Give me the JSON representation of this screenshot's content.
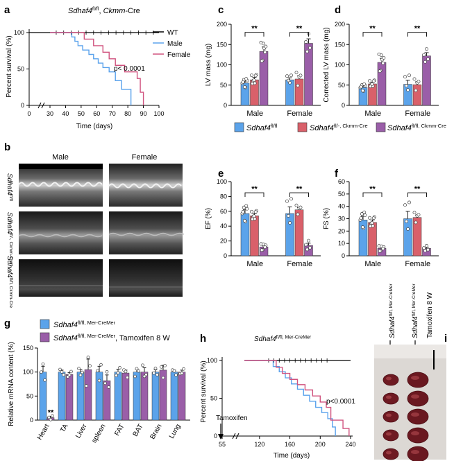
{
  "colors": {
    "wt": "#000000",
    "male_line": "#5aa2ec",
    "female_line": "#d0527e",
    "blue": "#5ba3ea",
    "red": "#d9606a",
    "purple": "#9a5ea8"
  },
  "panel_labels": {
    "a": "a",
    "b": "b",
    "c": "c",
    "d": "d",
    "e": "e",
    "f": "f",
    "g": "g",
    "h": "h",
    "i": "i"
  },
  "a": {
    "title_gene": "Sdhaf4",
    "title_sup": "fl/fl",
    "title_rest": ", ",
    "title_cre": "Ckmm",
    "title_end": "-Cre",
    "ylabel": "Percent survival (%)",
    "xlabel": "Time (days)",
    "yticks": [
      "0",
      "50",
      "100"
    ],
    "xticks": [
      "0",
      "30",
      "40",
      "50",
      "60",
      "70",
      "80",
      "90",
      "100"
    ],
    "legend": [
      "WT",
      "Male",
      "Female"
    ],
    "pvalue": "p< 0.0001"
  },
  "b": {
    "cols": [
      "Male",
      "Female"
    ],
    "rows": [
      {
        "gene": "Sdhaf4",
        "sup": "fl/fl"
      },
      {
        "gene": "Sdhaf4",
        "sup": "fl/-, Ckmm-Cre"
      },
      {
        "gene": "Sdhaf4",
        "sup": "fl/fl, Ckmm-Cre"
      }
    ]
  },
  "legend_cdef": [
    {
      "gene": "Sdhaf4",
      "sup": "fl/fl"
    },
    {
      "gene": "Sdhaf4",
      "sup": "fl/-, Ckmm-Cre"
    },
    {
      "gene": "Sdhaf4",
      "sup": "fl/fl, Ckmm-Cre"
    }
  ],
  "legend_g": [
    {
      "gene": "Sdhaf4",
      "sup": "fl/fl, Mer-CreMer",
      "extra": ""
    },
    {
      "gene": "Sdhaf4",
      "sup": "fl/fl, Mer-CreMer",
      "extra": ", Tamoxifen 8 W"
    }
  ],
  "sig": "**",
  "h": {
    "title_gene": "Sdhaf4",
    "title_sup": "fl/fl, Mer-CreMer",
    "ylabel": "Percent survival (%)",
    "xlabel": "Time (days)",
    "yticks": [
      "0",
      "50",
      "100"
    ],
    "xticks": [
      "55",
      "120",
      "160",
      "200",
      "240"
    ],
    "pvalue": "p<0.0001",
    "arrow_label": "Tamoxifen"
  },
  "i": {
    "labels": [
      {
        "gene": "Sdhaf4",
        "sup": "fl/fl, Mer-CreMer"
      },
      {
        "gene": "Sdhaf4",
        "sup": "fl/fl, Mer-CreMer"
      }
    ],
    "extra": "Tamoxifen 8 W"
  },
  "chart_data": [
    {
      "type": "line",
      "panel": "a",
      "xlabel": "Time (days)",
      "ylabel": "Percent survival (%)",
      "ylim": [
        0,
        100
      ],
      "xlim": [
        30,
        100
      ],
      "series": [
        {
          "name": "WT",
          "x": [
            30,
            100
          ],
          "y": [
            100,
            100
          ]
        },
        {
          "name": "Male",
          "x": [
            30,
            42,
            44,
            46,
            48,
            51,
            55,
            58,
            61,
            64,
            68,
            72,
            76,
            82
          ],
          "y": [
            100,
            100,
            94,
            88,
            82,
            76,
            70,
            64,
            58,
            52,
            46,
            34,
            22,
            0
          ]
        },
        {
          "name": "Female",
          "x": [
            30,
            46,
            52,
            58,
            64,
            68,
            72,
            78,
            86,
            88,
            90
          ],
          "y": [
            100,
            100,
            91,
            82,
            73,
            64,
            55,
            46,
            37,
            18,
            0
          ]
        }
      ]
    },
    {
      "type": "bar",
      "panel": "c",
      "ylabel": "LV mass (mg)",
      "ylim": [
        0,
        200
      ],
      "categories": [
        "Male",
        "Female"
      ],
      "series": [
        {
          "name": "Sdhaf4 fl/fl",
          "values": [
            55,
            63
          ]
        },
        {
          "name": "Sdhaf4 fl/-, Ckmm-Cre",
          "values": [
            63,
            65
          ]
        },
        {
          "name": "Sdhaf4 fl/fl, Ckmm-Cre",
          "values": [
            133,
            153
          ]
        }
      ]
    },
    {
      "type": "bar",
      "panel": "d",
      "ylabel": "Corrected LV mass (mg)",
      "ylim": [
        0,
        200
      ],
      "categories": [
        "Male",
        "Female"
      ],
      "series": [
        {
          "name": "Sdhaf4 fl/fl",
          "values": [
            44,
            52
          ]
        },
        {
          "name": "Sdhaf4 fl/-, Ckmm-Cre",
          "values": [
            53,
            51
          ]
        },
        {
          "name": "Sdhaf4 fl/fl, Ckmm-Cre",
          "values": [
            106,
            122
          ]
        }
      ]
    },
    {
      "type": "bar",
      "panel": "e",
      "ylabel": "EF (%)",
      "ylim": [
        0,
        100
      ],
      "categories": [
        "Male",
        "Female"
      ],
      "series": [
        {
          "name": "Sdhaf4 fl/fl",
          "values": [
            57,
            57
          ]
        },
        {
          "name": "Sdhaf4 fl/-, Ckmm-Cre",
          "values": [
            54,
            62
          ]
        },
        {
          "name": "Sdhaf4 fl/fl, Ckmm-Cre",
          "values": [
            12,
            14
          ]
        }
      ]
    },
    {
      "type": "bar",
      "panel": "f",
      "ylabel": "FS (%)",
      "ylim": [
        0,
        60
      ],
      "categories": [
        "Male",
        "Female"
      ],
      "series": [
        {
          "name": "Sdhaf4 fl/fl",
          "values": [
            29,
            30
          ]
        },
        {
          "name": "Sdhaf4 fl/-, Ckmm-Cre",
          "values": [
            27,
            31
          ]
        },
        {
          "name": "Sdhaf4 fl/fl, Ckmm-Cre",
          "values": [
            6,
            6
          ]
        }
      ]
    },
    {
      "type": "bar",
      "panel": "g",
      "ylabel": "Relative mRNA content (%)",
      "ylim": [
        0,
        150
      ],
      "categories": [
        "Heart",
        "TA",
        "Liver",
        "spleen",
        "FAT",
        "BAT",
        "Brain",
        "Lung"
      ],
      "series": [
        {
          "name": "Sdhaf4 fl/fl, Mer-CreMer",
          "values": [
            100,
            100,
            100,
            100,
            100,
            100,
            100,
            100
          ]
        },
        {
          "name": "Sdhaf4 fl/fl, Mer-CreMer, Tamoxifen 8 W",
          "values": [
            5,
            95,
            105,
            82,
            98,
            100,
            104,
            100
          ]
        }
      ]
    },
    {
      "type": "line",
      "panel": "h",
      "xlabel": "Time (days)",
      "ylabel": "Percent survival (%)",
      "ylim": [
        0,
        100
      ],
      "xlim": [
        55,
        240
      ],
      "series": [
        {
          "x": [
            100,
            240
          ],
          "y": [
            100,
            100
          ]
        },
        {
          "x": [
            100,
            130,
            138,
            146,
            154,
            162,
            170,
            178,
            186,
            194,
            202,
            210,
            216,
            220
          ],
          "y": [
            100,
            100,
            92,
            85,
            77,
            69,
            62,
            54,
            46,
            38,
            31,
            23,
            12,
            0
          ]
        },
        {
          "x": [
            100,
            134,
            142,
            150,
            160,
            170,
            180,
            190,
            200,
            208,
            214,
            230,
            238
          ],
          "y": [
            100,
            100,
            91,
            83,
            75,
            68,
            61,
            53,
            45,
            38,
            21,
            10,
            0
          ]
        }
      ]
    }
  ]
}
